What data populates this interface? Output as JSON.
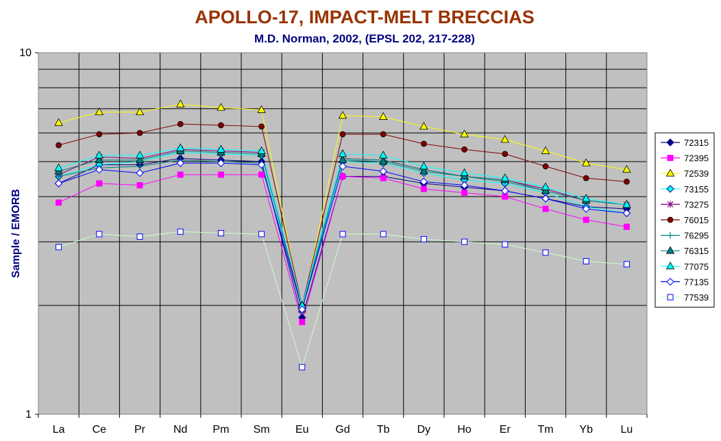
{
  "chart_data": {
    "type": "line",
    "title": "APOLLO-17, IMPACT-MELT BRECCIAS",
    "subtitle": "M.D. Norman, 2002, (EPSL 202, 217-228)",
    "ylabel": "Sample / EMORB",
    "xlabel": "",
    "yscale": "log",
    "ylim": [
      1,
      10
    ],
    "ytick_labels": [
      "1",
      "10"
    ],
    "grid": true,
    "legend_position": "right",
    "categories": [
      "La",
      "Ce",
      "Pr",
      "Nd",
      "Pm",
      "Sm",
      "Eu",
      "Gd",
      "Tb",
      "Dy",
      "Ho",
      "Er",
      "Tm",
      "Yb",
      "Lu"
    ],
    "series": [
      {
        "name": "72315",
        "color": "#000080",
        "marker": "diamond",
        "fill": "#000080",
        "values": [
          4.35,
          4.9,
          4.9,
          5.1,
          5.05,
          5.0,
          1.85,
          4.55,
          4.55,
          4.35,
          4.25,
          4.15,
          3.95,
          3.75,
          3.7
        ]
      },
      {
        "name": "72395",
        "color": "#FF00FF",
        "marker": "square",
        "fill": "#FF00FF",
        "values": [
          3.85,
          4.35,
          4.3,
          4.6,
          4.6,
          4.6,
          1.8,
          4.55,
          4.5,
          4.2,
          4.1,
          4.0,
          3.7,
          3.45,
          3.3
        ]
      },
      {
        "name": "72539",
        "color": "#FFFF00",
        "marker": "triangle",
        "fill": "#FFFF00",
        "values": [
          6.4,
          6.85,
          6.85,
          7.2,
          7.05,
          6.95,
          1.95,
          6.7,
          6.65,
          6.25,
          5.95,
          5.75,
          5.35,
          4.95,
          4.75
        ]
      },
      {
        "name": "73155",
        "color": "#00FFFF",
        "marker": "diamond",
        "fill": "#00FFFF",
        "values": [
          4.55,
          4.9,
          5.0,
          5.3,
          5.25,
          5.2,
          1.95,
          5.0,
          4.95,
          4.65,
          4.45,
          4.35,
          4.1,
          3.75,
          3.6
        ]
      },
      {
        "name": "73275",
        "color": "#800080",
        "marker": "star",
        "fill": "none",
        "values": [
          4.6,
          5.15,
          5.1,
          5.4,
          5.35,
          5.3,
          1.95,
          5.1,
          5.05,
          4.75,
          4.55,
          4.45,
          4.2,
          3.9,
          3.8
        ]
      },
      {
        "name": "76015",
        "color": "#800000",
        "marker": "circle",
        "fill": "#800000",
        "values": [
          5.55,
          5.95,
          6.0,
          6.35,
          6.3,
          6.25,
          2.0,
          5.95,
          5.95,
          5.6,
          5.4,
          5.25,
          4.85,
          4.5,
          4.4
        ]
      },
      {
        "name": "76295",
        "color": "#008080",
        "marker": "plus",
        "fill": "none",
        "values": [
          4.55,
          4.8,
          4.85,
          5.05,
          5.0,
          4.95,
          1.95,
          5.1,
          5.05,
          4.75,
          4.55,
          4.4,
          4.15,
          3.9,
          3.8
        ]
      },
      {
        "name": "76315",
        "color": "#008080",
        "marker": "triangle",
        "fill": "#008080",
        "values": [
          4.7,
          5.05,
          5.05,
          5.35,
          5.3,
          5.25,
          2.0,
          5.05,
          5.0,
          4.7,
          4.55,
          4.45,
          4.15,
          3.9,
          3.8
        ]
      },
      {
        "name": "77075",
        "color": "#00FFFF",
        "marker": "triangle",
        "fill": "#00FFFF",
        "values": [
          4.8,
          5.2,
          5.2,
          5.45,
          5.4,
          5.35,
          2.0,
          5.25,
          5.2,
          4.85,
          4.65,
          4.5,
          4.25,
          3.95,
          3.8
        ]
      },
      {
        "name": "77135",
        "color": "#0000FF",
        "marker": "diamond",
        "fill": "#FFFFFF",
        "values": [
          4.35,
          4.75,
          4.65,
          4.95,
          4.95,
          4.9,
          1.95,
          4.85,
          4.7,
          4.4,
          4.3,
          4.15,
          3.95,
          3.7,
          3.6
        ]
      },
      {
        "name": "77539",
        "color": "#CCFFCC",
        "marker": "square",
        "fill": "#FFFFFF",
        "values": [
          2.9,
          3.15,
          3.1,
          3.2,
          3.17,
          3.15,
          1.35,
          3.15,
          3.15,
          3.05,
          3.0,
          2.95,
          2.8,
          2.65,
          2.6
        ]
      }
    ]
  }
}
